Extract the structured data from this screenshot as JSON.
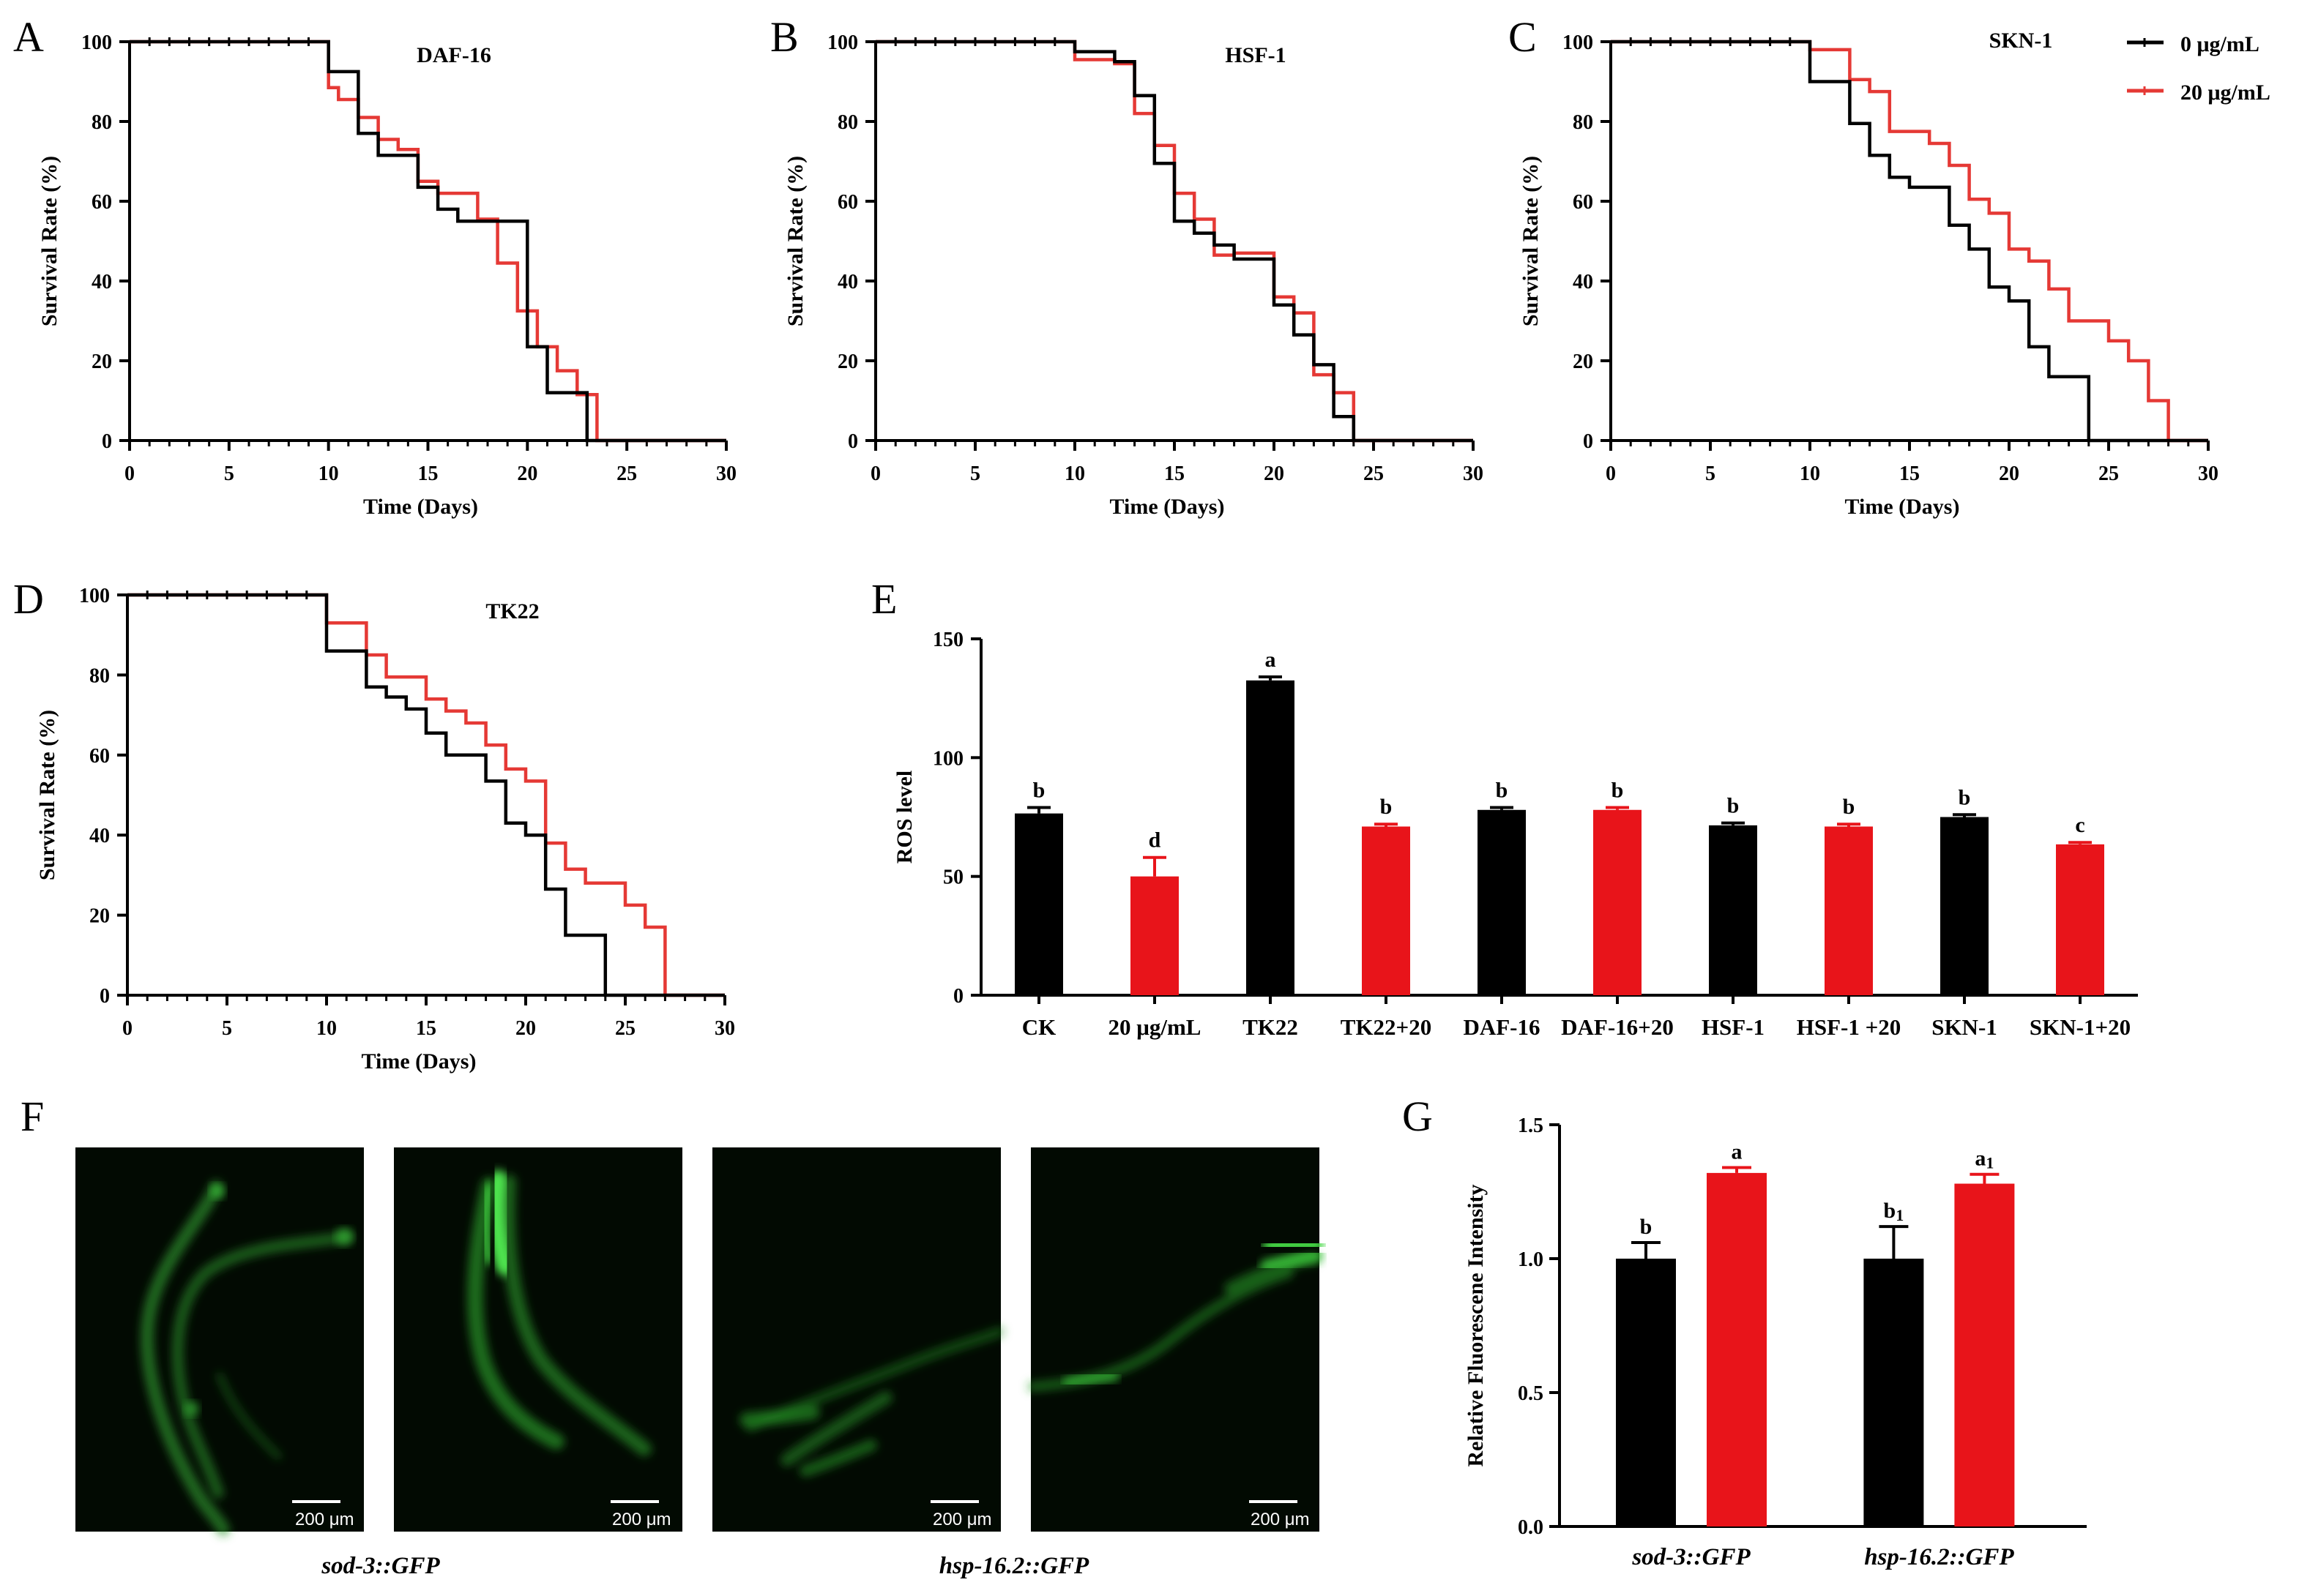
{
  "colors": {
    "control": "#000000",
    "treated": "#e8141a",
    "treated_line": "#e53935"
  },
  "legend": [
    {
      "label": "0 μg/mL",
      "color": "#000000"
    },
    {
      "label": "20 μg/mL",
      "color": "#e53935"
    }
  ],
  "chart_data": [
    {
      "id": "A",
      "type": "line",
      "step": true,
      "title": "DAF-16",
      "xlabel": "Time (Days)",
      "ylabel": "Survival Rate (%)",
      "xlim": [
        0,
        30
      ],
      "ylim": [
        0,
        100
      ],
      "xticks": [
        0,
        5,
        10,
        15,
        20,
        25,
        30
      ],
      "yticks": [
        0,
        20,
        40,
        60,
        80,
        100
      ],
      "series": [
        {
          "name": "0 μg/mL",
          "points": [
            [
              0,
              100
            ],
            [
              10,
              100
            ],
            [
              10,
              92.5
            ],
            [
              11.5,
              92.5
            ],
            [
              11.5,
              77
            ],
            [
              12.5,
              77
            ],
            [
              12.5,
              71.5
            ],
            [
              14.5,
              71.5
            ],
            [
              14.5,
              63.5
            ],
            [
              15.5,
              63.5
            ],
            [
              15.5,
              58
            ],
            [
              16.5,
              58
            ],
            [
              16.5,
              55
            ],
            [
              20,
              55
            ],
            [
              20,
              23.5
            ],
            [
              21,
              23.5
            ],
            [
              21,
              12
            ],
            [
              23,
              12
            ],
            [
              23,
              0
            ],
            [
              30,
              0
            ]
          ]
        },
        {
          "name": "20 μg/mL",
          "points": [
            [
              0,
              100
            ],
            [
              10,
              100
            ],
            [
              10,
              88.5
            ],
            [
              10.5,
              88.5
            ],
            [
              10.5,
              85.5
            ],
            [
              11.5,
              85.5
            ],
            [
              11.5,
              81
            ],
            [
              12.5,
              81
            ],
            [
              12.5,
              75.5
            ],
            [
              13.5,
              75.5
            ],
            [
              13.5,
              73
            ],
            [
              14.5,
              73
            ],
            [
              14.5,
              65
            ],
            [
              15.5,
              65
            ],
            [
              15.5,
              62
            ],
            [
              17.5,
              62
            ],
            [
              17.5,
              55.5
            ],
            [
              18.5,
              55.5
            ],
            [
              18.5,
              44.5
            ],
            [
              19.5,
              44.5
            ],
            [
              19.5,
              32.5
            ],
            [
              20.5,
              32.5
            ],
            [
              20.5,
              23.5
            ],
            [
              21.5,
              23.5
            ],
            [
              21.5,
              17.5
            ],
            [
              22.5,
              17.5
            ],
            [
              22.5,
              11.5
            ],
            [
              23.5,
              11.5
            ],
            [
              23.5,
              0
            ],
            [
              30,
              0
            ]
          ]
        }
      ]
    },
    {
      "id": "B",
      "type": "line",
      "step": true,
      "title": "HSF-1",
      "xlabel": "Time (Days)",
      "ylabel": "Survival Rate (%)",
      "xlim": [
        0,
        30
      ],
      "ylim": [
        0,
        100
      ],
      "xticks": [
        0,
        5,
        10,
        15,
        20,
        25,
        30
      ],
      "yticks": [
        0,
        20,
        40,
        60,
        80,
        100
      ],
      "series": [
        {
          "name": "0 μg/mL",
          "points": [
            [
              0,
              100
            ],
            [
              10,
              100
            ],
            [
              10,
              97.5
            ],
            [
              12,
              97.5
            ],
            [
              12,
              95
            ],
            [
              13,
              95
            ],
            [
              13,
              86.5
            ],
            [
              14,
              86.5
            ],
            [
              14,
              69.5
            ],
            [
              15,
              69.5
            ],
            [
              15,
              55
            ],
            [
              16,
              55
            ],
            [
              16,
              52
            ],
            [
              17,
              52
            ],
            [
              17,
              49
            ],
            [
              18,
              49
            ],
            [
              18,
              45.5
            ],
            [
              20,
              45.5
            ],
            [
              20,
              34
            ],
            [
              21,
              34
            ],
            [
              21,
              26.5
            ],
            [
              22,
              26.5
            ],
            [
              22,
              19
            ],
            [
              23,
              19
            ],
            [
              23,
              6
            ],
            [
              24,
              6
            ],
            [
              24,
              0
            ],
            [
              30,
              0
            ]
          ]
        },
        {
          "name": "20 μg/mL",
          "points": [
            [
              0,
              100
            ],
            [
              10,
              100
            ],
            [
              10,
              95.5
            ],
            [
              12,
              95.5
            ],
            [
              12,
              94.5
            ],
            [
              13,
              94.5
            ],
            [
              13,
              82
            ],
            [
              14,
              82
            ],
            [
              14,
              74
            ],
            [
              15,
              74
            ],
            [
              15,
              62
            ],
            [
              16,
              62
            ],
            [
              16,
              55.5
            ],
            [
              17,
              55.5
            ],
            [
              17,
              46.5
            ],
            [
              18,
              46.5
            ],
            [
              18,
              47
            ],
            [
              20,
              47
            ],
            [
              20,
              36
            ],
            [
              21,
              36
            ],
            [
              21,
              32
            ],
            [
              22,
              32
            ],
            [
              22,
              16.5
            ],
            [
              23,
              16.5
            ],
            [
              23,
              12
            ],
            [
              24,
              12
            ],
            [
              24,
              0
            ],
            [
              30,
              0
            ]
          ]
        }
      ]
    },
    {
      "id": "C",
      "type": "line",
      "step": true,
      "title": "SKN-1",
      "xlabel": "Time (Days)",
      "ylabel": "Survival Rate (%)",
      "xlim": [
        0,
        30
      ],
      "ylim": [
        0,
        100
      ],
      "xticks": [
        0,
        5,
        10,
        15,
        20,
        25,
        30
      ],
      "yticks": [
        0,
        20,
        40,
        60,
        80,
        100
      ],
      "series": [
        {
          "name": "0 μg/mL",
          "points": [
            [
              0,
              100
            ],
            [
              10,
              100
            ],
            [
              10,
              90
            ],
            [
              12,
              90
            ],
            [
              12,
              79.5
            ],
            [
              13,
              79.5
            ],
            [
              13,
              71.5
            ],
            [
              14,
              71.5
            ],
            [
              14,
              66
            ],
            [
              15,
              66
            ],
            [
              15,
              63.5
            ],
            [
              17,
              63.5
            ],
            [
              17,
              54
            ],
            [
              18,
              54
            ],
            [
              18,
              48
            ],
            [
              19,
              48
            ],
            [
              19,
              38.5
            ],
            [
              20,
              38.5
            ],
            [
              20,
              35
            ],
            [
              21,
              35
            ],
            [
              21,
              23.5
            ],
            [
              22,
              23.5
            ],
            [
              22,
              16
            ],
            [
              24,
              16
            ],
            [
              24,
              0
            ],
            [
              30,
              0
            ]
          ]
        },
        {
          "name": "20 μg/mL",
          "points": [
            [
              0,
              100
            ],
            [
              10,
              100
            ],
            [
              10,
              98
            ],
            [
              12,
              98
            ],
            [
              12,
              90.5
            ],
            [
              13,
              90.5
            ],
            [
              13,
              87.5
            ],
            [
              14,
              87.5
            ],
            [
              14,
              77.5
            ],
            [
              16,
              77.5
            ],
            [
              16,
              74.5
            ],
            [
              17,
              74.5
            ],
            [
              17,
              69
            ],
            [
              18,
              69
            ],
            [
              18,
              60.5
            ],
            [
              19,
              60.5
            ],
            [
              19,
              57
            ],
            [
              20,
              57
            ],
            [
              20,
              48
            ],
            [
              21,
              48
            ],
            [
              21,
              45
            ],
            [
              22,
              45
            ],
            [
              22,
              38
            ],
            [
              23,
              38
            ],
            [
              23,
              30
            ],
            [
              25,
              30
            ],
            [
              25,
              25
            ],
            [
              26,
              25
            ],
            [
              26,
              20
            ],
            [
              27,
              20
            ],
            [
              27,
              10
            ],
            [
              28,
              10
            ],
            [
              28,
              0
            ],
            [
              30,
              0
            ]
          ]
        }
      ]
    },
    {
      "id": "D",
      "type": "line",
      "step": true,
      "title": "TK22",
      "xlabel": "Time (Days)",
      "ylabel": "Survival Rate (%)",
      "xlim": [
        0,
        30
      ],
      "ylim": [
        0,
        100
      ],
      "xticks": [
        0,
        5,
        10,
        15,
        20,
        25,
        30
      ],
      "yticks": [
        0,
        20,
        40,
        60,
        80,
        100
      ],
      "series": [
        {
          "name": "0 μg/mL",
          "points": [
            [
              0,
              100
            ],
            [
              10,
              100
            ],
            [
              10,
              86
            ],
            [
              12,
              86
            ],
            [
              12,
              77
            ],
            [
              13,
              77
            ],
            [
              13,
              74.5
            ],
            [
              14,
              74.5
            ],
            [
              14,
              71.5
            ],
            [
              15,
              71.5
            ],
            [
              15,
              65.5
            ],
            [
              16,
              65.5
            ],
            [
              16,
              60
            ],
            [
              18,
              60
            ],
            [
              18,
              53.5
            ],
            [
              19,
              53.5
            ],
            [
              19,
              43
            ],
            [
              20,
              43
            ],
            [
              20,
              40
            ],
            [
              21,
              40
            ],
            [
              21,
              26.5
            ],
            [
              22,
              26.5
            ],
            [
              22,
              15
            ],
            [
              24,
              15
            ],
            [
              24,
              0
            ],
            [
              30,
              0
            ]
          ]
        },
        {
          "name": "20 μg/mL",
          "points": [
            [
              0,
              100
            ],
            [
              10,
              100
            ],
            [
              10,
              93
            ],
            [
              12,
              93
            ],
            [
              12,
              85
            ],
            [
              13,
              85
            ],
            [
              13,
              79.5
            ],
            [
              15,
              79.5
            ],
            [
              15,
              74
            ],
            [
              16,
              74
            ],
            [
              16,
              71
            ],
            [
              17,
              71
            ],
            [
              17,
              68
            ],
            [
              18,
              68
            ],
            [
              18,
              62.5
            ],
            [
              19,
              62.5
            ],
            [
              19,
              56.5
            ],
            [
              20,
              56.5
            ],
            [
              20,
              53.5
            ],
            [
              21,
              53.5
            ],
            [
              21,
              38
            ],
            [
              22,
              38
            ],
            [
              22,
              31.5
            ],
            [
              23,
              31.5
            ],
            [
              23,
              28
            ],
            [
              25,
              28
            ],
            [
              25,
              22.5
            ],
            [
              26,
              22.5
            ],
            [
              26,
              17
            ],
            [
              27,
              17
            ],
            [
              27,
              0
            ],
            [
              30,
              0
            ]
          ]
        }
      ]
    },
    {
      "id": "E",
      "type": "bar",
      "ylabel": "ROS level",
      "ylim": [
        0,
        150
      ],
      "yticks": [
        0,
        50,
        100,
        150
      ],
      "categories": [
        "CK",
        "20 μg/mL",
        "TK22",
        "TK22+20",
        "DAF-16",
        "DAF-16+20",
        "HSF-1",
        "HSF-1 +20",
        "SKN-1",
        "SKN-1+20"
      ],
      "values": [
        76.5,
        50,
        132.5,
        71,
        78,
        78,
        71.5,
        71,
        75,
        63.5
      ],
      "errors": [
        2.5,
        8,
        1.5,
        1,
        1,
        1,
        1,
        1,
        1,
        0.8
      ],
      "labels": [
        "b",
        "d",
        "a",
        "b",
        "b",
        "b",
        "b",
        "b",
        "b",
        "c"
      ],
      "colors": [
        "#000000",
        "#e8141a",
        "#000000",
        "#e8141a",
        "#000000",
        "#e8141a",
        "#000000",
        "#e8141a",
        "#000000",
        "#e8141a"
      ]
    },
    {
      "id": "G",
      "type": "bar",
      "ylabel": "Relative Fluorescene Intensity",
      "ylim": [
        0,
        1.5
      ],
      "yticks": [
        "0.0",
        "0.5",
        "1.0",
        "1.5"
      ],
      "categories": [
        "sod-3::GFP",
        "hsp-16.2::GFP"
      ],
      "series": [
        {
          "name": "0 μg/mL",
          "values": [
            1.0,
            1.0
          ],
          "errors": [
            0.06,
            0.12
          ],
          "labels": [
            "b",
            "b1"
          ],
          "color": "#000000"
        },
        {
          "name": "20 μg/mL",
          "values": [
            1.32,
            1.28
          ],
          "errors": [
            0.02,
            0.035
          ],
          "labels": [
            "a",
            "a1"
          ],
          "color": "#e8141a"
        }
      ]
    }
  ],
  "panel_f": {
    "letter": "F",
    "images": [
      {
        "scale_label": "200 μm"
      },
      {
        "scale_label": "200 μm"
      },
      {
        "scale_label": "200 μm"
      },
      {
        "scale_label": "200 μm"
      }
    ],
    "captions": [
      "sod-3::GFP",
      "hsp-16.2::GFP"
    ]
  }
}
